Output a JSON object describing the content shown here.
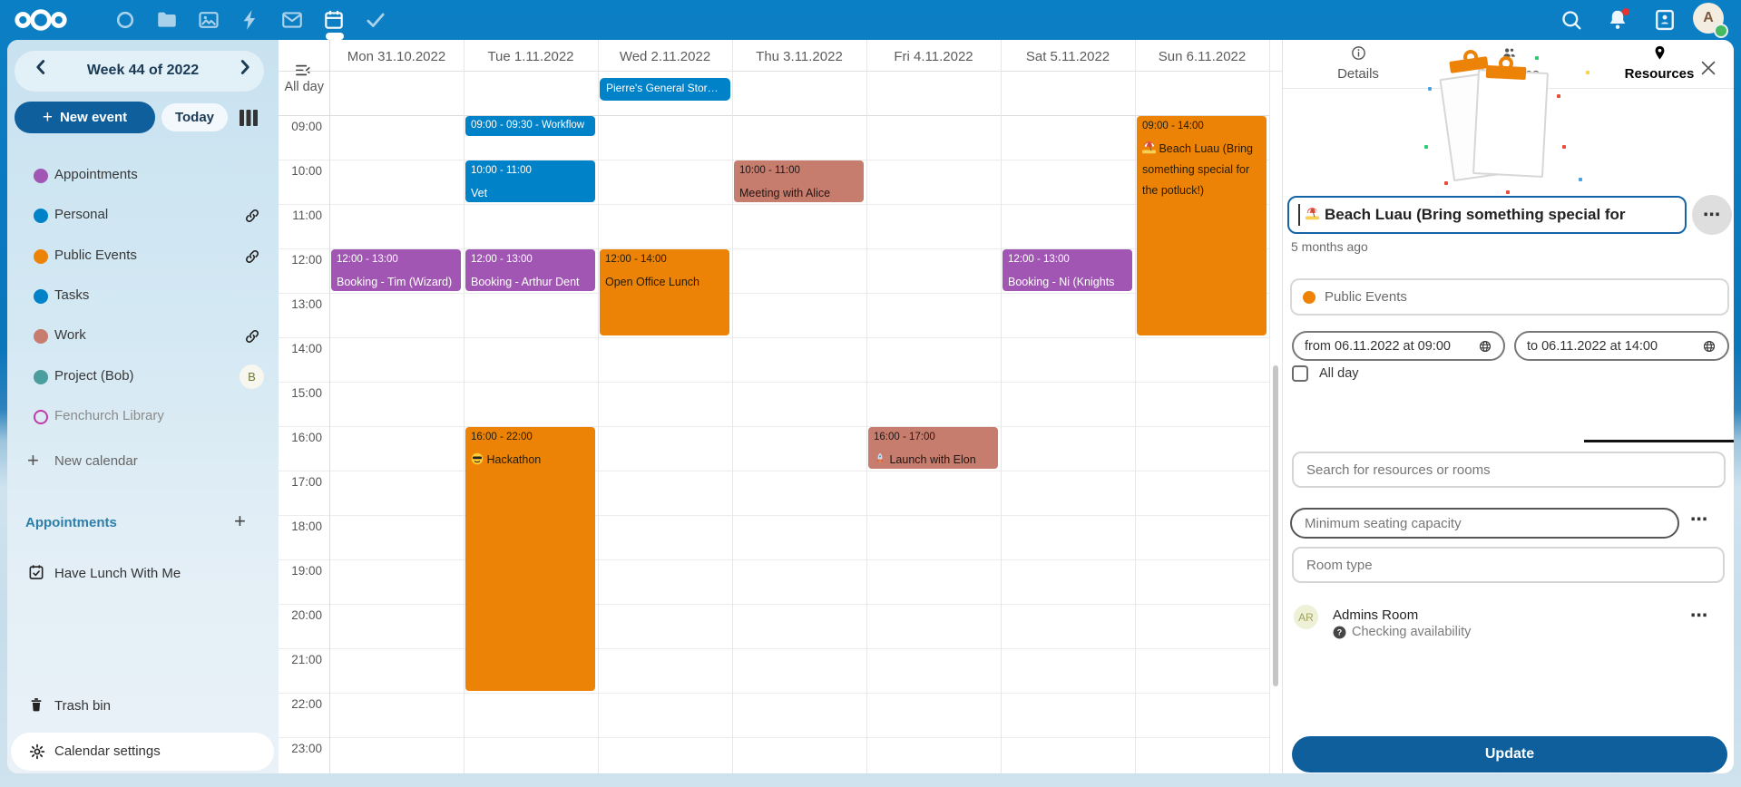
{
  "header": {
    "apps": [
      {
        "name": "circle"
      },
      {
        "name": "files"
      },
      {
        "name": "photos"
      },
      {
        "name": "activity"
      },
      {
        "name": "mail"
      },
      {
        "name": "calendar",
        "active": true
      },
      {
        "name": "tasks"
      }
    ],
    "avatar_initial": "A"
  },
  "sidebar": {
    "week_label": "Week 44 of 2022",
    "new_event_label": "New event",
    "today_label": "Today",
    "calendars": [
      {
        "name": "Appointments",
        "color": "#a156b4",
        "trailing": "none"
      },
      {
        "name": "Personal",
        "color": "#0082c9",
        "trailing": "link"
      },
      {
        "name": "Public Events",
        "color": "#ed8306",
        "trailing": "link"
      },
      {
        "name": "Tasks",
        "color": "#0082c9",
        "trailing": "none"
      },
      {
        "name": "Work",
        "color": "#c67d6e",
        "trailing": "link"
      },
      {
        "name": "Project (Bob)",
        "color": "#4c9e9e",
        "trailing": "badge",
        "badge": "B"
      },
      {
        "name": "Fenchurch Library",
        "color": "#c13ba5",
        "outlined": true,
        "muted": true,
        "trailing": "none"
      }
    ],
    "new_calendar_label": "New calendar",
    "appointments_header": "Appointments",
    "appointment_items": [
      {
        "label": "Have Lunch With Me"
      }
    ],
    "trash_label": "Trash bin",
    "settings_label": "Calendar settings"
  },
  "calendar": {
    "day_headers": [
      "Mon 31.10.2022",
      "Tue 1.11.2022",
      "Wed 2.11.2022",
      "Thu 3.11.2022",
      "Fri 4.11.2022",
      "Sat 5.11.2022",
      "Sun 6.11.2022"
    ],
    "all_day_label": "All day",
    "hours": [
      "09:00",
      "10:00",
      "11:00",
      "12:00",
      "13:00",
      "14:00",
      "15:00",
      "16:00",
      "17:00",
      "18:00",
      "19:00",
      "20:00",
      "21:00",
      "22:00",
      "23:00"
    ],
    "allday_events": [
      {
        "day": 2,
        "title": "Pierre's General Stor…",
        "color": "blue"
      }
    ],
    "events": [
      {
        "day": 1,
        "start": 9,
        "end": 9.5,
        "time": "09:00 - 09:30 - Workflow",
        "title": "",
        "color": "blue"
      },
      {
        "day": 1,
        "start": 10,
        "end": 11,
        "time": "10:00 - 11:00",
        "title": "Vet",
        "color": "blue"
      },
      {
        "day": 3,
        "start": 10,
        "end": 11,
        "time": "10:00 - 11:00",
        "title": "Meeting with Alice",
        "color": "salmon"
      },
      {
        "day": 0,
        "start": 12,
        "end": 13,
        "time": "12:00 - 13:00",
        "title": "Booking - Tim (Wizard)",
        "color": "purple"
      },
      {
        "day": 1,
        "start": 12,
        "end": 13,
        "time": "12:00 - 13:00",
        "title": "Booking - Arthur Dent",
        "color": "purple"
      },
      {
        "day": 2,
        "start": 12,
        "end": 14,
        "time": "12:00 - 14:00",
        "title": "Open Office Lunch",
        "color": "orange"
      },
      {
        "day": 5,
        "start": 12,
        "end": 13,
        "time": "12:00 - 13:00",
        "title": "Booking - Ni (Knights",
        "color": "purple"
      },
      {
        "day": 1,
        "start": 16,
        "end": 22,
        "time": "16:00 - 22:00",
        "title": "😎 Hackathon",
        "color": "orange"
      },
      {
        "day": 4,
        "start": 16,
        "end": 17,
        "time": "16:00 - 17:00",
        "title": "🚀 Launch with Elon",
        "color": "salmon"
      },
      {
        "day": 6,
        "start": 9,
        "end": 14,
        "time": "09:00 - 14:00",
        "title": "🏖️ Beach Luau (Bring something special for the potluck!)",
        "color": "orange"
      }
    ]
  },
  "panel": {
    "title_emoji": "🏖️",
    "title": "Beach Luau (Bring something special for",
    "modified": "5 months ago",
    "calendar_name": "Public Events",
    "calendar_color": "#ed8306",
    "from_label": "from 06.11.2022 at 09:00",
    "to_label": "to 06.11.2022 at 14:00",
    "all_day_label": "All day",
    "tabs": [
      {
        "label": "Details",
        "icon": "info"
      },
      {
        "label": "Attendees",
        "icon": "people"
      },
      {
        "label": "Resources",
        "icon": "pin",
        "active": true
      }
    ],
    "search_placeholder": "Search for resources or rooms",
    "seating_placeholder": "Minimum seating capacity",
    "room_type_placeholder": "Room type",
    "resource": {
      "initials": "AR",
      "name": "Admins Room",
      "status": "Checking availability"
    },
    "update_label": "Update"
  },
  "colors": {
    "primary": "#0e5f9c",
    "accent": "#0082c9",
    "event_blue": "#0082c9",
    "event_purple": "#a156b4",
    "event_orange": "#ed8306",
    "event_salmon": "#c67d6e"
  }
}
